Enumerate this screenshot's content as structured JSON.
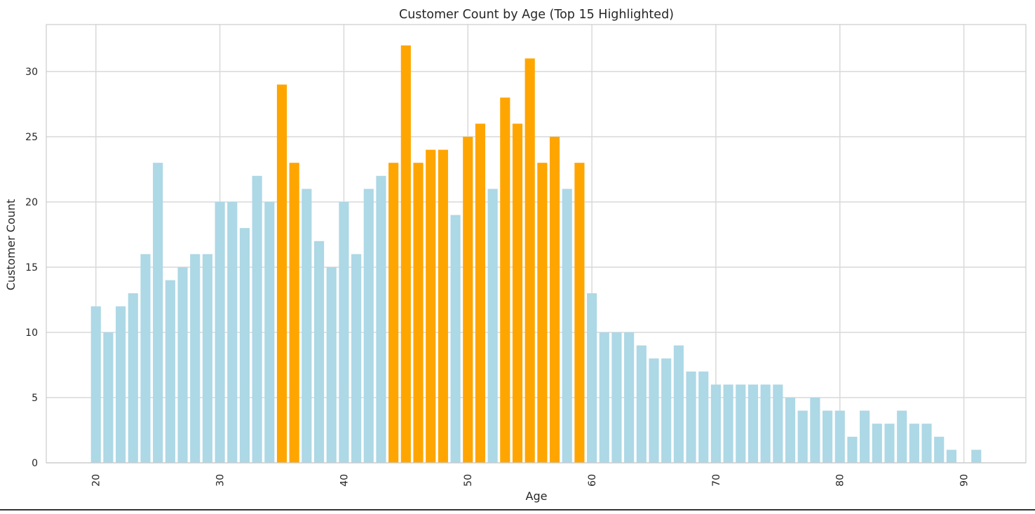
{
  "chart_data": {
    "type": "bar",
    "title": "Customer Count by Age (Top 15 Highlighted)",
    "xlabel": "Age",
    "ylabel": "Customer Count",
    "xlim": [
      16,
      95
    ],
    "ylim": [
      0,
      33.6
    ],
    "xticks": [
      20,
      30,
      40,
      50,
      60,
      70,
      80,
      90
    ],
    "yticks": [
      0,
      5,
      10,
      15,
      20,
      25,
      30
    ],
    "grid": true,
    "colors": {
      "default": "#add8e6",
      "highlight": "#ffa500"
    },
    "x": [
      20,
      21,
      22,
      23,
      24,
      25,
      26,
      27,
      28,
      29,
      30,
      31,
      32,
      33,
      34,
      35,
      36,
      37,
      38,
      39,
      40,
      41,
      42,
      43,
      44,
      45,
      46,
      47,
      48,
      49,
      50,
      51,
      52,
      53,
      54,
      55,
      56,
      57,
      58,
      59,
      60,
      61,
      62,
      63,
      64,
      65,
      66,
      67,
      68,
      69,
      70,
      71,
      72,
      73,
      74,
      75,
      76,
      77,
      78,
      79,
      80,
      81,
      82,
      83,
      84,
      85,
      86,
      87,
      88,
      89,
      91
    ],
    "values": [
      12,
      10,
      12,
      13,
      16,
      23,
      14,
      15,
      16,
      16,
      20,
      20,
      18,
      22,
      20,
      29,
      23,
      21,
      17,
      15,
      20,
      16,
      21,
      22,
      23,
      32,
      23,
      24,
      24,
      19,
      25,
      26,
      21,
      28,
      26,
      31,
      23,
      25,
      21,
      23,
      13,
      10,
      10,
      10,
      9,
      8,
      8,
      9,
      7,
      7,
      6,
      6,
      6,
      6,
      6,
      6,
      5,
      4,
      5,
      4,
      4,
      2,
      4,
      3,
      3,
      4,
      3,
      3,
      2,
      1,
      1
    ],
    "highlighted_x": [
      35,
      36,
      44,
      45,
      46,
      47,
      48,
      50,
      51,
      53,
      54,
      55,
      56,
      57,
      59
    ]
  }
}
